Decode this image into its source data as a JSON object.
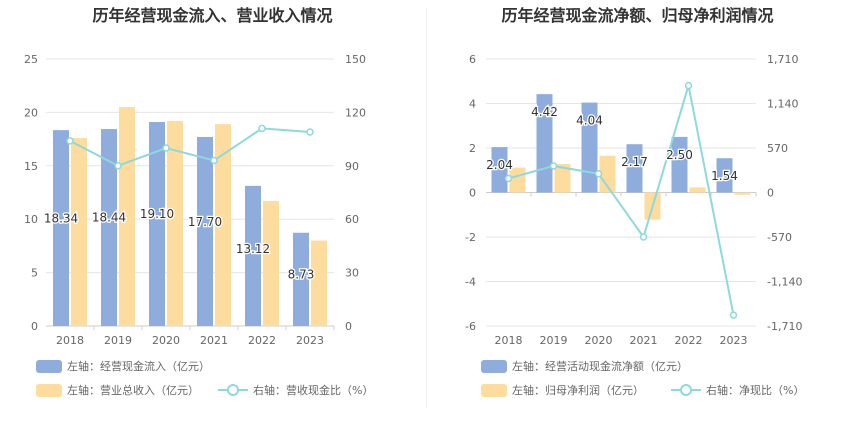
{
  "charts": [
    {
      "id": "left",
      "title": "历年经营现金流入、营业收入情况",
      "colors": {
        "bar1": "#8eacdc",
        "bar2": "#fddc9e",
        "line": "#8dd9dd",
        "line_fill": "#ffffff"
      },
      "left_ticks": [
        "0",
        "5",
        "10",
        "15",
        "20",
        "25"
      ],
      "right_ticks": [
        "0",
        "30",
        "60",
        "90",
        "120",
        "150"
      ],
      "legend": [
        {
          "label": "左轴：经营现金流入（亿元）",
          "kind": "bar1"
        },
        {
          "label": "左轴：营业总收入（亿元）",
          "kind": "bar2"
        },
        {
          "label": "右轴：营收现金比（%）",
          "kind": "line"
        }
      ]
    },
    {
      "id": "right",
      "title": "历年经营现金流净额、归母净利润情况",
      "colors": {
        "bar1": "#8eacdc",
        "bar2": "#fddc9e",
        "line": "#8dd9dd",
        "line_fill": "#ffffff"
      },
      "left_ticks": [
        "-6",
        "-4",
        "-2",
        "0",
        "2",
        "4",
        "6"
      ],
      "right_ticks": [
        "-1,710",
        "-1,140",
        "-570",
        "0",
        "570",
        "1,140",
        "1,710"
      ],
      "legend": [
        {
          "label": "左轴：经营活动现金流净额（亿元）",
          "kind": "bar1"
        },
        {
          "label": "左轴：归母净利润（亿元）",
          "kind": "bar2"
        },
        {
          "label": "右轴：净现比（%）",
          "kind": "line"
        }
      ]
    }
  ],
  "chart_data": [
    {
      "type": "bar",
      "title": "历年经营现金流入、营业收入情况",
      "categories": [
        "2018",
        "2019",
        "2020",
        "2021",
        "2022",
        "2023"
      ],
      "ylim": [
        0,
        25
      ],
      "y2lim": [
        0,
        150
      ],
      "grid": true,
      "legend_position": "bottom",
      "series": [
        {
          "name": "左轴：经营现金流入（亿元）",
          "type": "bar",
          "axis": "left",
          "values": [
            18.34,
            18.44,
            19.1,
            17.7,
            13.12,
            8.73
          ],
          "labels": [
            "18.34",
            "18.44",
            "19.10",
            "17.70",
            "13.12",
            "8.73"
          ]
        },
        {
          "name": "左轴：营业总收入（亿元）",
          "type": "bar",
          "axis": "left",
          "values": [
            17.6,
            20.5,
            19.2,
            18.9,
            11.7,
            8.0
          ]
        },
        {
          "name": "右轴：营收现金比（%）",
          "type": "line",
          "axis": "right",
          "values": [
            104,
            90,
            100,
            93,
            111,
            109
          ]
        }
      ]
    },
    {
      "type": "bar",
      "title": "历年经营现金流净额、归母净利润情况",
      "categories": [
        "2018",
        "2019",
        "2020",
        "2021",
        "2022",
        "2023"
      ],
      "ylim": [
        -6,
        6
      ],
      "y2lim": [
        -1710,
        1710
      ],
      "grid": true,
      "legend_position": "bottom",
      "series": [
        {
          "name": "左轴：经营活动现金流净额（亿元）",
          "type": "bar",
          "axis": "left",
          "values": [
            2.04,
            4.42,
            4.04,
            2.17,
            2.5,
            1.54
          ],
          "labels": [
            "2.04",
            "4.42",
            "4.04",
            "2.17",
            "2.50",
            "1.54"
          ]
        },
        {
          "name": "左轴：归母净利润（亿元）",
          "type": "bar",
          "axis": "left",
          "values": [
            1.12,
            1.28,
            1.65,
            -1.22,
            0.23,
            -0.1
          ]
        },
        {
          "name": "右轴：净现比（%）",
          "type": "line",
          "axis": "right",
          "values": [
            180,
            340,
            240,
            -570,
            1370,
            -1570
          ]
        }
      ]
    }
  ]
}
